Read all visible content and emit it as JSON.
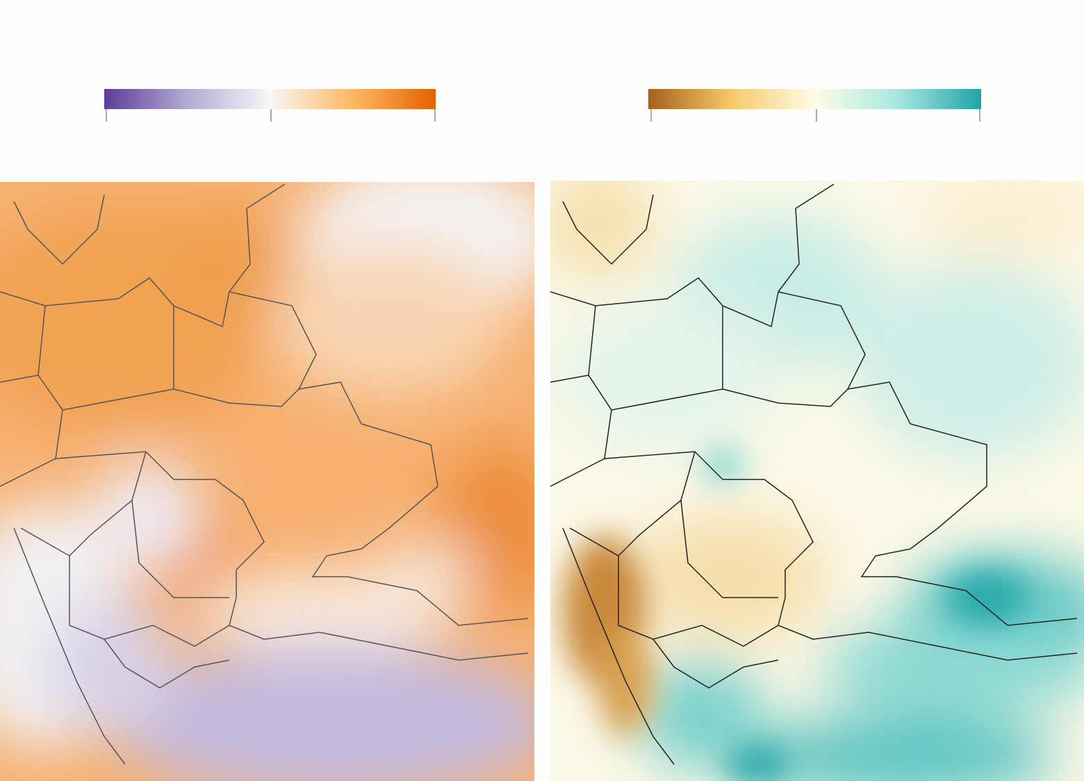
{
  "colorbars": [
    {
      "colors": [
        "#5e3c99",
        "#b2abd2",
        "#f7f7f7",
        "#fdb863",
        "#e66101"
      ]
    },
    {
      "colors": [
        "#a6611a",
        "#f6c96a",
        "#fdfde6",
        "#a8e6e0",
        "#1fa3a8"
      ]
    }
  ]
}
